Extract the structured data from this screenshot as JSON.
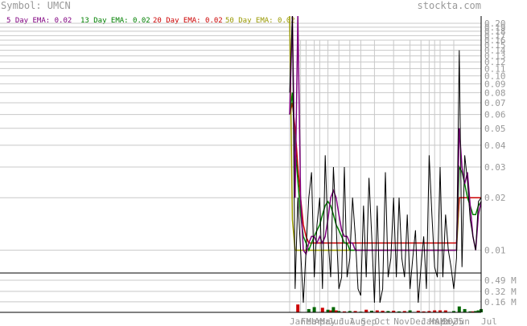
{
  "header": {
    "symbol_text": "Symbol: UMCN",
    "brand": "stockta.com"
  },
  "legend": [
    {
      "label": "5 Day EMA: 0.02",
      "color": "#800080"
    },
    {
      "label": "13 Day EMA: 0.02",
      "color": "#008000"
    },
    {
      "label": "20 Day EMA: 0.02",
      "color": "#cc0000"
    },
    {
      "label": "50 Day EMA: 0.02",
      "color": "#999900"
    }
  ],
  "chart_data": {
    "type": "line",
    "title": "",
    "price_axis": {
      "scale": "log",
      "ylim": [
        0.0074,
        0.22
      ],
      "tick_labels": [
        "0.20",
        "0.19",
        "0.18",
        "0.17",
        "0.16",
        "0.15",
        "0.14",
        "0.13",
        "0.12",
        "0.11",
        "0.10",
        "0.09",
        "0.08",
        "0.07",
        "0.06",
        "0.05",
        "0.04",
        "0.03",
        "0.02",
        "0.01"
      ],
      "tick_values": [
        0.2,
        0.19,
        0.18,
        0.17,
        0.16,
        0.15,
        0.14,
        0.13,
        0.12,
        0.11,
        0.1,
        0.09,
        0.08,
        0.07,
        0.06,
        0.05,
        0.04,
        0.03,
        0.02,
        0.01
      ]
    },
    "volume_axis": {
      "ylim": [
        0,
        0.6
      ],
      "unit": "M",
      "tick_labels": [
        "0.49 M",
        "0.32 M",
        "0.16 M"
      ],
      "tick_values": [
        0.49,
        0.32,
        0.16
      ]
    },
    "x_axis": {
      "tick_labels": [
        "Jan",
        "Feb",
        "Mar",
        "Apr",
        "May",
        "Jun",
        "Jul",
        "Aug",
        "Sep",
        "Oct",
        "Nov",
        "Dec",
        "Jan 2025",
        "Mar",
        "Apr",
        "May",
        "Jun",
        "Jul"
      ],
      "tick_positions": [
        0,
        4,
        6,
        9,
        11,
        14,
        18,
        22,
        26,
        31,
        38,
        44,
        48,
        51,
        53,
        55,
        60,
        70
      ]
    },
    "series": [
      {
        "name": "Price",
        "color": "#000000",
        "values": [
          0.08,
          0.22,
          0.006,
          0.02,
          0.01,
          0.005,
          0.01,
          0.02,
          0.028,
          0.007,
          0.014,
          0.02,
          0.006,
          0.035,
          0.012,
          0.007,
          0.03,
          0.014,
          0.006,
          0.007,
          0.03,
          0.007,
          0.009,
          0.02,
          0.012,
          0.006,
          0.0055,
          0.018,
          0.007,
          0.026,
          0.012,
          0.005,
          0.018,
          0.005,
          0.006,
          0.028,
          0.007,
          0.009,
          0.02,
          0.007,
          0.02,
          0.009,
          0.007,
          0.016,
          0.006,
          0.009,
          0.013,
          0.005,
          0.008,
          0.012,
          0.006,
          0.035,
          0.016,
          0.008,
          0.007,
          0.03,
          0.007,
          0.016,
          0.01,
          0.008,
          0.006,
          0.009,
          0.14,
          0.008,
          0.035,
          0.025,
          0.015,
          0.012,
          0.01,
          0.019,
          0.02
        ]
      },
      {
        "name": "5 Day EMA",
        "color": "#800080",
        "values": [
          0.06,
          0.22,
          0.02,
          0.22,
          0.02,
          0.01,
          0.0095,
          0.011,
          0.012,
          0.012,
          0.011,
          0.012,
          0.011,
          0.012,
          0.015,
          0.02,
          0.022,
          0.02,
          0.016,
          0.013,
          0.012,
          0.012,
          0.011,
          0.011,
          0.01,
          0.01,
          0.01,
          0.01,
          0.01,
          0.01,
          0.01,
          0.01,
          0.01,
          0.01,
          0.01,
          0.01,
          0.01,
          0.01,
          0.01,
          0.01,
          0.01,
          0.01,
          0.01,
          0.01,
          0.01,
          0.01,
          0.01,
          0.01,
          0.01,
          0.01,
          0.01,
          0.01,
          0.01,
          0.01,
          0.01,
          0.01,
          0.01,
          0.01,
          0.01,
          0.01,
          0.01,
          0.01,
          0.05,
          0.03,
          0.024,
          0.028,
          0.018,
          0.012,
          0.01,
          0.016,
          0.019
        ]
      },
      {
        "name": "13 Day EMA",
        "color": "#008000",
        "values": [
          0.06,
          0.08,
          0.04,
          0.025,
          0.016,
          0.012,
          0.011,
          0.01,
          0.011,
          0.012,
          0.013,
          0.014,
          0.016,
          0.018,
          0.019,
          0.018,
          0.016,
          0.014,
          0.013,
          0.012,
          0.011,
          0.011,
          0.01,
          0.01,
          0.01,
          0.01,
          0.01,
          0.01,
          0.01,
          0.01,
          0.01,
          0.01,
          0.01,
          0.01,
          0.01,
          0.01,
          0.01,
          0.01,
          0.01,
          0.01,
          0.01,
          0.01,
          0.01,
          0.01,
          0.01,
          0.01,
          0.01,
          0.01,
          0.01,
          0.01,
          0.01,
          0.01,
          0.01,
          0.01,
          0.01,
          0.01,
          0.01,
          0.01,
          0.01,
          0.01,
          0.01,
          0.01,
          0.03,
          0.028,
          0.024,
          0.02,
          0.018,
          0.016,
          0.016,
          0.018,
          0.019
        ]
      },
      {
        "name": "20 Day EMA",
        "color": "#cc0000",
        "values": [
          0.06,
          0.07,
          0.05,
          0.03,
          0.02,
          0.014,
          0.012,
          0.011,
          0.011,
          0.011,
          0.011,
          0.011,
          0.011,
          0.011,
          0.011,
          0.011,
          0.011,
          0.011,
          0.011,
          0.011,
          0.011,
          0.011,
          0.011,
          0.011,
          0.011,
          0.011,
          0.011,
          0.011,
          0.011,
          0.011,
          0.011,
          0.011,
          0.011,
          0.011,
          0.011,
          0.011,
          0.011,
          0.011,
          0.011,
          0.011,
          0.011,
          0.011,
          0.011,
          0.011,
          0.011,
          0.011,
          0.011,
          0.011,
          0.011,
          0.011,
          0.011,
          0.011,
          0.011,
          0.011,
          0.011,
          0.011,
          0.011,
          0.011,
          0.011,
          0.011,
          0.011,
          0.011,
          0.02,
          0.02,
          0.02,
          0.02,
          0.02,
          0.02,
          0.02,
          0.02,
          0.02
        ]
      },
      {
        "name": "50 Day EMA",
        "color": "#999900",
        "values": [
          0.22,
          0.015,
          0.01,
          0.01,
          0.01,
          0.01,
          0.01,
          0.01,
          0.01,
          0.01,
          0.01,
          0.01,
          0.01,
          0.01,
          0.01,
          0.01,
          0.01,
          0.01,
          0.01,
          0.01,
          0.01,
          0.01,
          0.01,
          0.01,
          0.01,
          0.01,
          0.01,
          0.01,
          0.01,
          0.01,
          0.01,
          0.01,
          0.01,
          0.01,
          0.01,
          0.01,
          0.01,
          0.01,
          0.01,
          0.01,
          0.01,
          0.01,
          0.01,
          0.01,
          0.01,
          0.01,
          0.01,
          0.01,
          0.01,
          0.01,
          0.01,
          0.01,
          0.01,
          0.01,
          0.01,
          0.01,
          0.01,
          0.01,
          0.01,
          0.01,
          0.01,
          0.01,
          0.02,
          0.02,
          0.02,
          0.02,
          0.02,
          0.02,
          0.02,
          0.02,
          0.02
        ]
      }
    ],
    "volume_bars": [
      {
        "x": 3,
        "v": 0.12,
        "color": "#cc0000"
      },
      {
        "x": 7,
        "v": 0.05,
        "color": "#006600"
      },
      {
        "x": 9,
        "v": 0.08,
        "color": "#006600"
      },
      {
        "x": 12,
        "v": 0.07,
        "color": "#cc0000"
      },
      {
        "x": 14,
        "v": 0.04,
        "color": "#006600"
      },
      {
        "x": 15,
        "v": 0.03,
        "color": "#cc0000"
      },
      {
        "x": 16,
        "v": 0.08,
        "color": "#006600"
      },
      {
        "x": 17,
        "v": 0.03,
        "color": "#cc0000"
      },
      {
        "x": 18,
        "v": 0.02,
        "color": "#006600"
      },
      {
        "x": 20,
        "v": 0.015,
        "color": "#cc0000"
      },
      {
        "x": 22,
        "v": 0.02,
        "color": "#006600"
      },
      {
        "x": 24,
        "v": 0.02,
        "color": "#cc0000"
      },
      {
        "x": 26,
        "v": 0.01,
        "color": "#006600"
      },
      {
        "x": 28,
        "v": 0.04,
        "color": "#cc0000"
      },
      {
        "x": 30,
        "v": 0.025,
        "color": "#006600"
      },
      {
        "x": 32,
        "v": 0.03,
        "color": "#cc0000"
      },
      {
        "x": 34,
        "v": 0.025,
        "color": "#cc0000"
      },
      {
        "x": 36,
        "v": 0.02,
        "color": "#006600"
      },
      {
        "x": 38,
        "v": 0.025,
        "color": "#cc0000"
      },
      {
        "x": 40,
        "v": 0.015,
        "color": "#006600"
      },
      {
        "x": 42,
        "v": 0.02,
        "color": "#cc0000"
      },
      {
        "x": 44,
        "v": 0.03,
        "color": "#006600"
      },
      {
        "x": 47,
        "v": 0.025,
        "color": "#cc0000"
      },
      {
        "x": 49,
        "v": 0.015,
        "color": "#cc0000"
      },
      {
        "x": 51,
        "v": 0.02,
        "color": "#cc0000"
      },
      {
        "x": 53,
        "v": 0.03,
        "color": "#cc0000"
      },
      {
        "x": 55,
        "v": 0.03,
        "color": "#cc0000"
      },
      {
        "x": 57,
        "v": 0.03,
        "color": "#cc0000"
      },
      {
        "x": 60,
        "v": 0.02,
        "color": "#006600"
      },
      {
        "x": 62,
        "v": 0.09,
        "color": "#006600"
      },
      {
        "x": 64,
        "v": 0.05,
        "color": "#006600"
      },
      {
        "x": 66,
        "v": 0.015,
        "color": "#006600"
      },
      {
        "x": 67,
        "v": 0.015,
        "color": "#cc0000"
      },
      {
        "x": 68,
        "v": 0.02,
        "color": "#006600"
      },
      {
        "x": 69,
        "v": 0.03,
        "color": "#006600"
      },
      {
        "x": 70,
        "v": 0.05,
        "color": "#006600"
      }
    ],
    "grid": true,
    "legend_position": "top"
  }
}
